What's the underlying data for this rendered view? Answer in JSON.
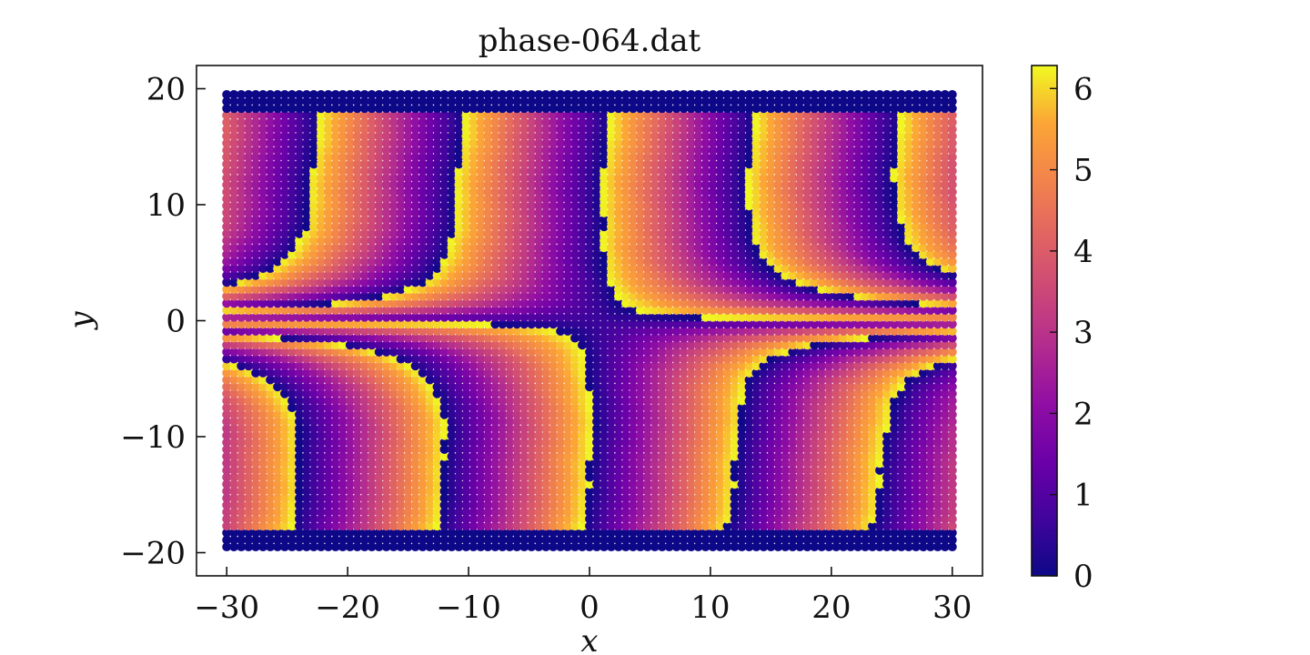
{
  "chart_data": {
    "type": "heatmap",
    "title": "phase-064.dat",
    "xlabel": "x",
    "ylabel": "y",
    "xlim": [
      -32.5,
      32.5
    ],
    "ylim": [
      -22,
      22
    ],
    "xticks": [
      -30,
      -20,
      -10,
      0,
      10,
      20,
      30
    ],
    "xtick_labels": [
      "−30",
      "−20",
      "−10",
      "0",
      "10",
      "20",
      "30"
    ],
    "yticks": [
      -20,
      -10,
      0,
      10,
      20
    ],
    "ytick_labels": [
      "−20",
      "−10",
      "0",
      "10",
      "20"
    ],
    "grid": false,
    "colormap": "plasma",
    "colorbar": {
      "min": 0,
      "max": 6.2832,
      "ticks": [
        0,
        1,
        2,
        3,
        4,
        5,
        6
      ],
      "tick_labels": [
        "0",
        "1",
        "2",
        "3",
        "4",
        "5",
        "6"
      ]
    },
    "field": {
      "x_range": [
        -30,
        30
      ],
      "y_range": [
        -19.5,
        19.5
      ],
      "grid_step": 0.6,
      "boundary_rows": {
        "y_below": -18.0,
        "y_above": 18.0,
        "value": 0
      },
      "vortex_pairs": [
        {
          "x": -25.0,
          "y": 0.0
        },
        {
          "x": -13.0,
          "y": 0.0
        },
        {
          "x": -1.0,
          "y": 0.0
        },
        {
          "x": 11.0,
          "y": 0.0
        },
        {
          "x": 23.0,
          "y": 0.0
        }
      ],
      "wave_period_x": 12,
      "jump_band_upper_x": [
        -23.0,
        -11.0,
        1.0,
        13.0,
        25.0
      ],
      "jump_band_lower_x": [
        -26.0,
        -14.0,
        -2.0,
        10.0,
        22.0
      ],
      "phase_range": [
        0,
        6.2832
      ]
    }
  }
}
